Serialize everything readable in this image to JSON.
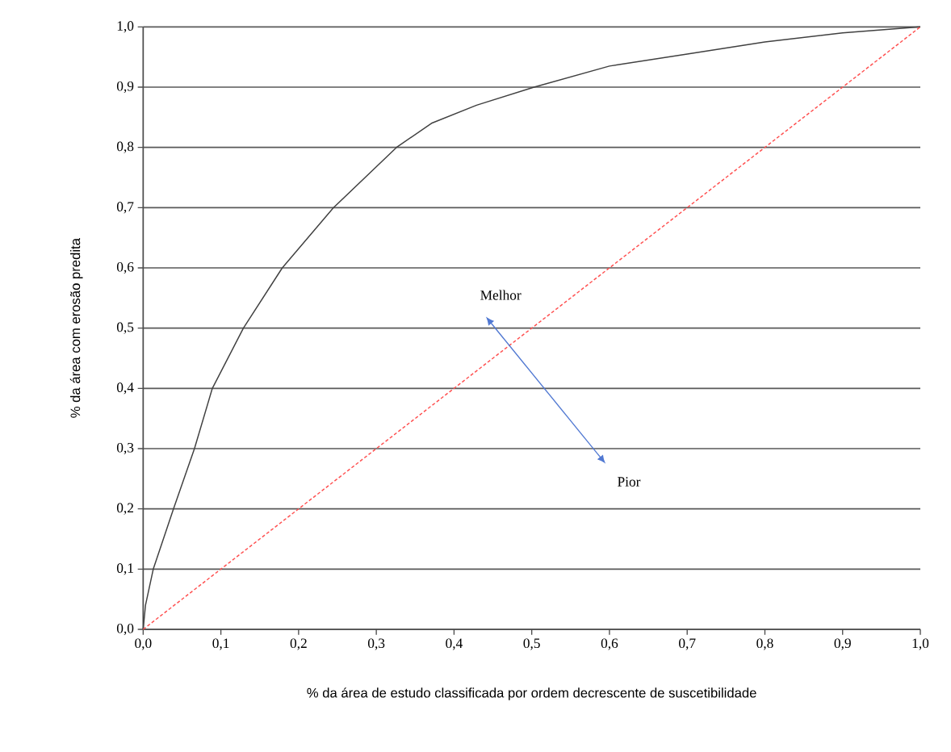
{
  "chart_data": {
    "type": "line",
    "xlabel": "% da área de estudo classificada por ordem decrescente de suscetibilidade",
    "ylabel": "% da área com erosão predita",
    "x": [
      0,
      0.003,
      0.013,
      0.039,
      0.066,
      0.089,
      0.129,
      0.179,
      0.245,
      0.326,
      0.371,
      0.429,
      0.503,
      0.6,
      0.7,
      0.8,
      0.9,
      1.0
    ],
    "series": [
      {
        "color": "#404040",
        "line_style": "solid",
        "values": [
          0,
          0.04,
          0.1,
          0.2,
          0.3,
          0.4,
          0.5,
          0.6,
          0.7,
          0.8,
          0.84,
          0.87,
          0.9,
          0.935,
          0.955,
          0.975,
          0.99,
          1.0
        ]
      },
      {
        "color": "#ff5050",
        "line_style": "dashed",
        "x": [
          0,
          1.0
        ],
        "values": [
          0,
          1.0
        ]
      }
    ],
    "annotations": [
      "Melhor",
      "Pior"
    ],
    "xlim": [
      0,
      1.0
    ],
    "ylim": [
      0,
      1.0
    ],
    "xticks": [
      {
        "value": 0,
        "label": "0,0"
      },
      {
        "value": 0.1,
        "label": "0,1"
      },
      {
        "value": 0.2,
        "label": "0,2"
      },
      {
        "value": 0.3,
        "label": "0,3"
      },
      {
        "value": 0.4,
        "label": "0,4"
      },
      {
        "value": 0.5,
        "label": "0,5"
      },
      {
        "value": 0.6,
        "label": "0,6"
      },
      {
        "value": 0.7,
        "label": "0,7"
      },
      {
        "value": 0.8,
        "label": "0,8"
      },
      {
        "value": 0.9,
        "label": "0,9"
      },
      {
        "value": 1.0,
        "label": "1,0"
      }
    ],
    "yticks": [
      {
        "value": 0,
        "label": "0,0"
      },
      {
        "value": 0.1,
        "label": "0,1"
      },
      {
        "value": 0.2,
        "label": "0,2"
      },
      {
        "value": 0.3,
        "label": "0,3"
      },
      {
        "value": 0.4,
        "label": "0,4"
      },
      {
        "value": 0.5,
        "label": "0,5"
      },
      {
        "value": 0.6,
        "label": "0,6"
      },
      {
        "value": 0.7,
        "label": "0,7"
      },
      {
        "value": 0.8,
        "label": "0,8"
      },
      {
        "value": 0.9,
        "label": "0,9"
      },
      {
        "value": 1.0,
        "label": "1,0"
      }
    ],
    "grid": "y",
    "marker": "none"
  }
}
